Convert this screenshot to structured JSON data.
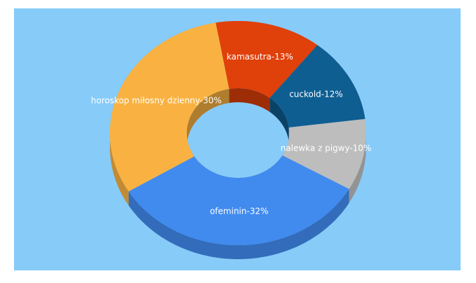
{
  "chart_data": {
    "type": "donut3d",
    "values": [
      13,
      12,
      10,
      32,
      30
    ],
    "value_labels": [
      "kamasutra-13%",
      "cuckold-12%",
      "nalewka z pigwy-10%",
      "ofeminin-32%",
      "horoskop miłosny dzienny-30%"
    ],
    "colors": [
      "#e0400a",
      "#0e5e92",
      "#bdbdbd",
      "#418bef",
      "#f9b241"
    ]
  }
}
